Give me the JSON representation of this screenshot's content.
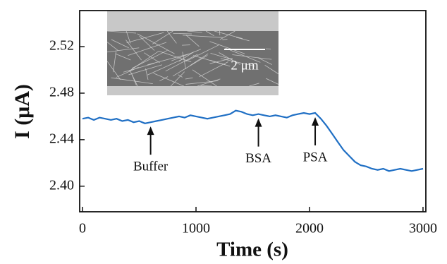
{
  "chart_data": {
    "type": "line",
    "x_label": "Time (s)",
    "y_label": "I (μA)",
    "x": [
      0,
      50,
      100,
      150,
      200,
      250,
      300,
      350,
      400,
      450,
      500,
      550,
      600,
      650,
      700,
      750,
      800,
      850,
      900,
      950,
      1000,
      1050,
      1100,
      1150,
      1200,
      1250,
      1300,
      1350,
      1400,
      1450,
      1500,
      1550,
      1600,
      1650,
      1700,
      1750,
      1800,
      1850,
      1900,
      1950,
      2000,
      2050,
      2100,
      2150,
      2200,
      2250,
      2300,
      2350,
      2400,
      2450,
      2500,
      2550,
      2600,
      2650,
      2700,
      2750,
      2800,
      2850,
      2900,
      2950,
      3000
    ],
    "values": [
      2.458,
      2.459,
      2.457,
      2.459,
      2.458,
      2.457,
      2.458,
      2.456,
      2.457,
      2.455,
      2.456,
      2.454,
      2.455,
      2.456,
      2.457,
      2.458,
      2.459,
      2.46,
      2.459,
      2.461,
      2.46,
      2.459,
      2.458,
      2.459,
      2.46,
      2.461,
      2.462,
      2.465,
      2.464,
      2.462,
      2.461,
      2.462,
      2.461,
      2.46,
      2.461,
      2.46,
      2.459,
      2.461,
      2.462,
      2.463,
      2.462,
      2.463,
      2.458,
      2.452,
      2.445,
      2.438,
      2.431,
      2.426,
      2.421,
      2.418,
      2.417,
      2.415,
      2.414,
      2.415,
      2.413,
      2.414,
      2.415,
      2.414,
      2.413,
      2.414,
      2.415
    ],
    "color": "#1f6fc4",
    "xlim": [
      -25,
      3025
    ],
    "ylim": [
      2.378,
      2.551
    ],
    "xticks": [
      0,
      1000,
      2000,
      3000
    ],
    "yticks": [
      {
        "value": 2.4,
        "label": "2.40"
      },
      2.44,
      2.48,
      2.52
    ],
    "annotations": [
      {
        "text": "Buffer",
        "x": 600
      },
      {
        "text": "BSA",
        "x": 1550
      },
      {
        "text": "PSA",
        "x": 2050
      }
    ],
    "inset_label": "2 μm"
  }
}
